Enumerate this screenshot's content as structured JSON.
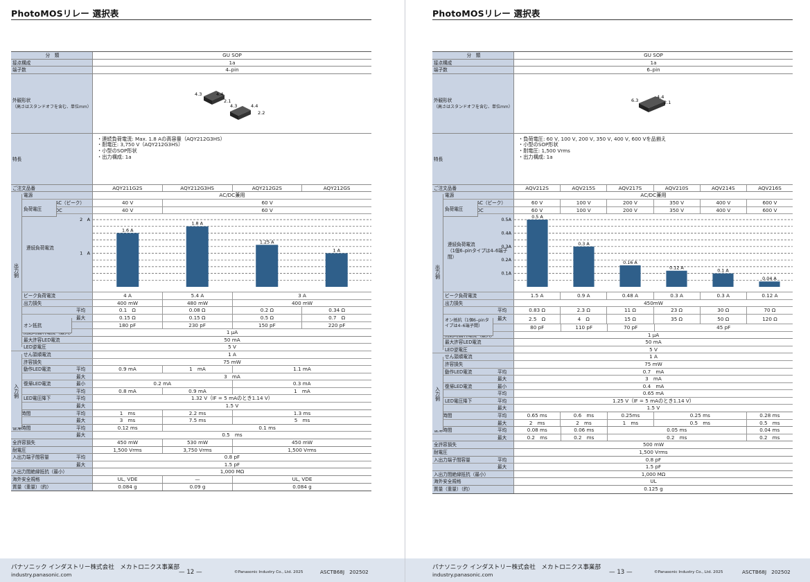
{
  "header": {
    "title": "PhotoMOSリレー 選択表"
  },
  "footer": {
    "company": "パナソニック インダストリー株式会社　メカトロニクス事業部",
    "url": "industry.panasonic.com",
    "copyright": "©Panasonic Industry Co., Ltd. 2025",
    "doc": "ASCTB68J　202502"
  },
  "left": {
    "page": "— 12 —",
    "class_label": "分　類",
    "class_val": "GU SOP",
    "contact_label": "接点構成",
    "contact_val": "1a",
    "pin_label": "端子数",
    "pin_val": "4–pin",
    "outline_label": "外観形状",
    "outline_note": "（高さはスタンドオフを含む、単位mm）",
    "pkg_dims": [
      "4.3",
      "4.4",
      "2.1",
      "4.3",
      "4.4",
      "2.2"
    ],
    "feature_label": "特長",
    "features": [
      "・連続負荷電流: Max. 1.8 Aの高容量（AQY212G3HS）",
      "・耐電圧: 3,750 V（AQY212G3HS）",
      "・小型のSOP形状",
      "・出力構成: 1a"
    ],
    "order_label": "ご注文品番",
    "parts": [
      "AQY211G2S",
      "AQY212G3HS",
      "AQY212G2S",
      "AQY212GS"
    ],
    "out_side": "出力側",
    "in_side": "入力側",
    "power_label": "電源",
    "power_val": "AC/DC兼用",
    "loadv_label": "負荷電圧",
    "ac_label": "AC（ピーク）",
    "dc_label": "DC",
    "loadv_ac": [
      "40 V",
      "60 V"
    ],
    "loadv_dc": [
      "40 V",
      "60 V"
    ],
    "cont_label": "連続負荷電流",
    "ytick": [
      "2　A",
      "1　A"
    ],
    "peak_label": "ピーク負荷電流",
    "peak": [
      "4 A",
      "5.4 A",
      "3 A"
    ],
    "loss_label": "出力損失",
    "loss": [
      "400 mW",
      "480 mW",
      "400 mW"
    ],
    "on_label": "オン抵抗",
    "avg": "平均",
    "max": "最大",
    "min": "最小",
    "on_avg": [
      "0.1　Ω",
      "0.08 Ω",
      "0.2 Ω",
      "0.34 Ω"
    ],
    "on_max": [
      "0.15 Ω",
      "0.15 Ω",
      "0.5 Ω",
      "0.7　Ω"
    ],
    "cap_label": "出力端子間容量（平均）",
    "cap": [
      "180 pF",
      "230 pF",
      "150 pF",
      "220 pF"
    ],
    "leak_label": "開路時漏れ電流（最大）",
    "leak": "1 μA",
    "ledmax_label": "最大許容LED電流",
    "ledmax": "50 mA",
    "ledrev_label": "LED逆電圧",
    "ledrev": "5 V",
    "surge_label": "せん頭順電流",
    "surge": "1 A",
    "inloss_label": "許容損失",
    "inloss": "75 mW",
    "opled_label": "動作LED電流",
    "opled_avg": [
      "0.9 mA",
      "1　mA",
      "1.1 mA"
    ],
    "opled_max": "3　mA",
    "rel_label": "復帰LED電流",
    "rel_min": [
      "0.2 mA",
      "0.3 mA"
    ],
    "rel_avg": [
      "0.8 mA",
      "0.9 mA",
      "1　mA"
    ],
    "vf_label": "LED電圧降下",
    "vf_avg": "1.32 V（IF = 5 mAのとき1.14 V）",
    "vf_max": "1.5 V",
    "op_label": "動作時間",
    "op_avg": [
      "1　ms",
      "2.2 ms",
      "1.3 ms"
    ],
    "op_max": [
      "3　ms",
      "7.5 ms",
      "5　ms"
    ],
    "rt_label": "復帰時間",
    "rt_avg": [
      "0.12 ms",
      "0.1 ms"
    ],
    "rt_max": "0.5　ms",
    "tot_label": "全許容損失",
    "tot": [
      "450 mW",
      "530 mW",
      "450 mW"
    ],
    "iso_label": "耐電圧",
    "iso": [
      "1,500 Vrms",
      "3,750 Vrms",
      "1,500 Vrms"
    ],
    "iocap_label": "入出力端子間容量",
    "iocap_avg": "0.8 pF",
    "iocap_max": "1.5 pF",
    "ior_label": "入出力間絶縁抵抗（最小）",
    "ior": "1,000 MΩ",
    "std_label": "海外安全規格",
    "std": [
      "UL, VDE",
      "—",
      "UL, VDE"
    ],
    "wt_label": "質量（重量）（約）",
    "wt": [
      "0.084 g",
      "0.09 g",
      "0.084 g"
    ]
  },
  "right": {
    "page": "— 13 —",
    "class_label": "分　類",
    "class_val": "GU SOP",
    "contact_label": "接点構成",
    "contact_val": "1a",
    "pin_label": "端子数",
    "pin_val": "6–pin",
    "outline_label": "外観形状",
    "outline_note": "（高さはスタンドオフを含む、単位mm）",
    "pkg_dims": [
      "6.3",
      "4.4",
      "2.1"
    ],
    "feature_label": "特長",
    "features": [
      "・負荷電圧: 60 V, 100 V, 200 V, 350 V, 400 V, 600 Vを品揃え",
      "・小型のSOP形状",
      "・耐電圧: 1,500 Vrms",
      "・出力構成: 1a"
    ],
    "order_label": "ご注文品番",
    "parts": [
      "AQV212S",
      "AQV215S",
      "AQV217S",
      "AQV210S",
      "AQV214S",
      "AQV216S"
    ],
    "out_side": "出力側",
    "in_side": "入力側",
    "power_label": "電源",
    "power_val": "AC/DC兼用",
    "loadv_label": "負荷電圧",
    "ac_label": "AC（ピーク）",
    "dc_label": "DC",
    "loadv": [
      "60 V",
      "100 V",
      "200 V",
      "350 V",
      "400 V",
      "600 V"
    ],
    "cont_label": "連続負荷電流",
    "cont_note": "（1個6–pinタイプは4–6端子間）",
    "yticks": [
      "0.5A",
      "0.4A",
      "0.3A",
      "0.2A",
      "0.1A"
    ],
    "peak_label": "ピーク負荷電流",
    "peak": [
      "1.5 A",
      "0.9 A",
      "0.48 A",
      "0.3 A",
      "0.3 A",
      "0.12 A"
    ],
    "loss_label": "出力損失",
    "loss": "450mW",
    "on_label": "オン抵抗",
    "on_note": "（1個6–pinタイプは4–6端子間）",
    "avg": "平均",
    "max": "最大",
    "min": "最小",
    "on_avg": [
      "0.83 Ω",
      "2.3 Ω",
      "11 Ω",
      "23 Ω",
      "30 Ω",
      "70 Ω"
    ],
    "on_max": [
      "2.5　Ω",
      "4　Ω",
      "15 Ω",
      "35 Ω",
      "50 Ω",
      "120 Ω"
    ],
    "cap_label": "出力端子間容量（平均）",
    "cap": [
      "80 pF",
      "110 pF",
      "70 pF",
      "45 pF"
    ],
    "leak_label": "開路時漏れ電流（最大）",
    "leak": "1 μA",
    "ledmax_label": "最大許容LED電流",
    "ledmax": "50 mA",
    "ledrev_label": "LED逆電圧",
    "ledrev": "5 V",
    "surge_label": "せん頭順電流",
    "surge": "1 A",
    "inloss_label": "許容損失",
    "inloss": "75 mW",
    "opled_label": "動作LED電流",
    "opled_avg": "0.7　mA",
    "opled_max": "3　mA",
    "rel_label": "復帰LED電流",
    "rel_min": "0.4　mA",
    "rel_avg": "0.65 mA",
    "vf_label": "LED電圧降下",
    "vf_avg": "1.25 V（IF = 5 mAのとき1.14 V）",
    "vf_max": "1.5 V",
    "op_label": "動作時間",
    "op_avg": [
      "0.65 ms",
      "0.6　ms",
      "0.25ms",
      "0.25 ms",
      "0.28 ms"
    ],
    "op_max": [
      "2　ms",
      "2　ms",
      "1　ms",
      "0.5　ms",
      "0.5　ms"
    ],
    "rt_label": "復帰時間",
    "rt_avg": [
      "0.08 ms",
      "0.06 ms",
      "0.05 ms",
      "0.04 ms"
    ],
    "rt_max": [
      "0.2　ms",
      "0.2　ms",
      "0.2　ms",
      "0.2　ms"
    ],
    "tot_label": "全許容損失",
    "tot": "500 mW",
    "iso_label": "耐電圧",
    "iso": "1,500 Vrms",
    "iocap_label": "入出力端子間容量",
    "iocap_avg": "0.8 pF",
    "iocap_max": "1.5 pF",
    "ior_label": "入出力間絶縁抵抗（最小）",
    "ior": "1,000 MΩ",
    "std_label": "海外安全規格",
    "std": "UL",
    "wt_label": "質量（重量）（約）",
    "wt": "0.125 g"
  },
  "chart_data": [
    {
      "type": "bar",
      "categories": [
        "AQY211G2S",
        "AQY212G3HS",
        "AQY212G2S",
        "AQY212GS"
      ],
      "values": [
        1.6,
        1.8,
        1.25,
        1.0
      ],
      "value_labels": [
        "1.6 A",
        "1.8 A",
        "1.25 A",
        "1 A"
      ],
      "ylim": [
        0,
        2
      ],
      "ylabel": "",
      "color": "#2f5f8a"
    },
    {
      "type": "bar",
      "categories": [
        "AQV212S",
        "AQV215S",
        "AQV217S",
        "AQV210S",
        "AQV214S",
        "AQV216S"
      ],
      "values": [
        0.5,
        0.3,
        0.16,
        0.12,
        0.1,
        0.04
      ],
      "value_labels": [
        "0.5 A",
        "0.3 A",
        "0.16 A",
        "0.12 A",
        "0.1 A",
        "0.04 A"
      ],
      "ylim": [
        0,
        0.5
      ],
      "ylabel": "",
      "color": "#2f5f8a"
    }
  ]
}
